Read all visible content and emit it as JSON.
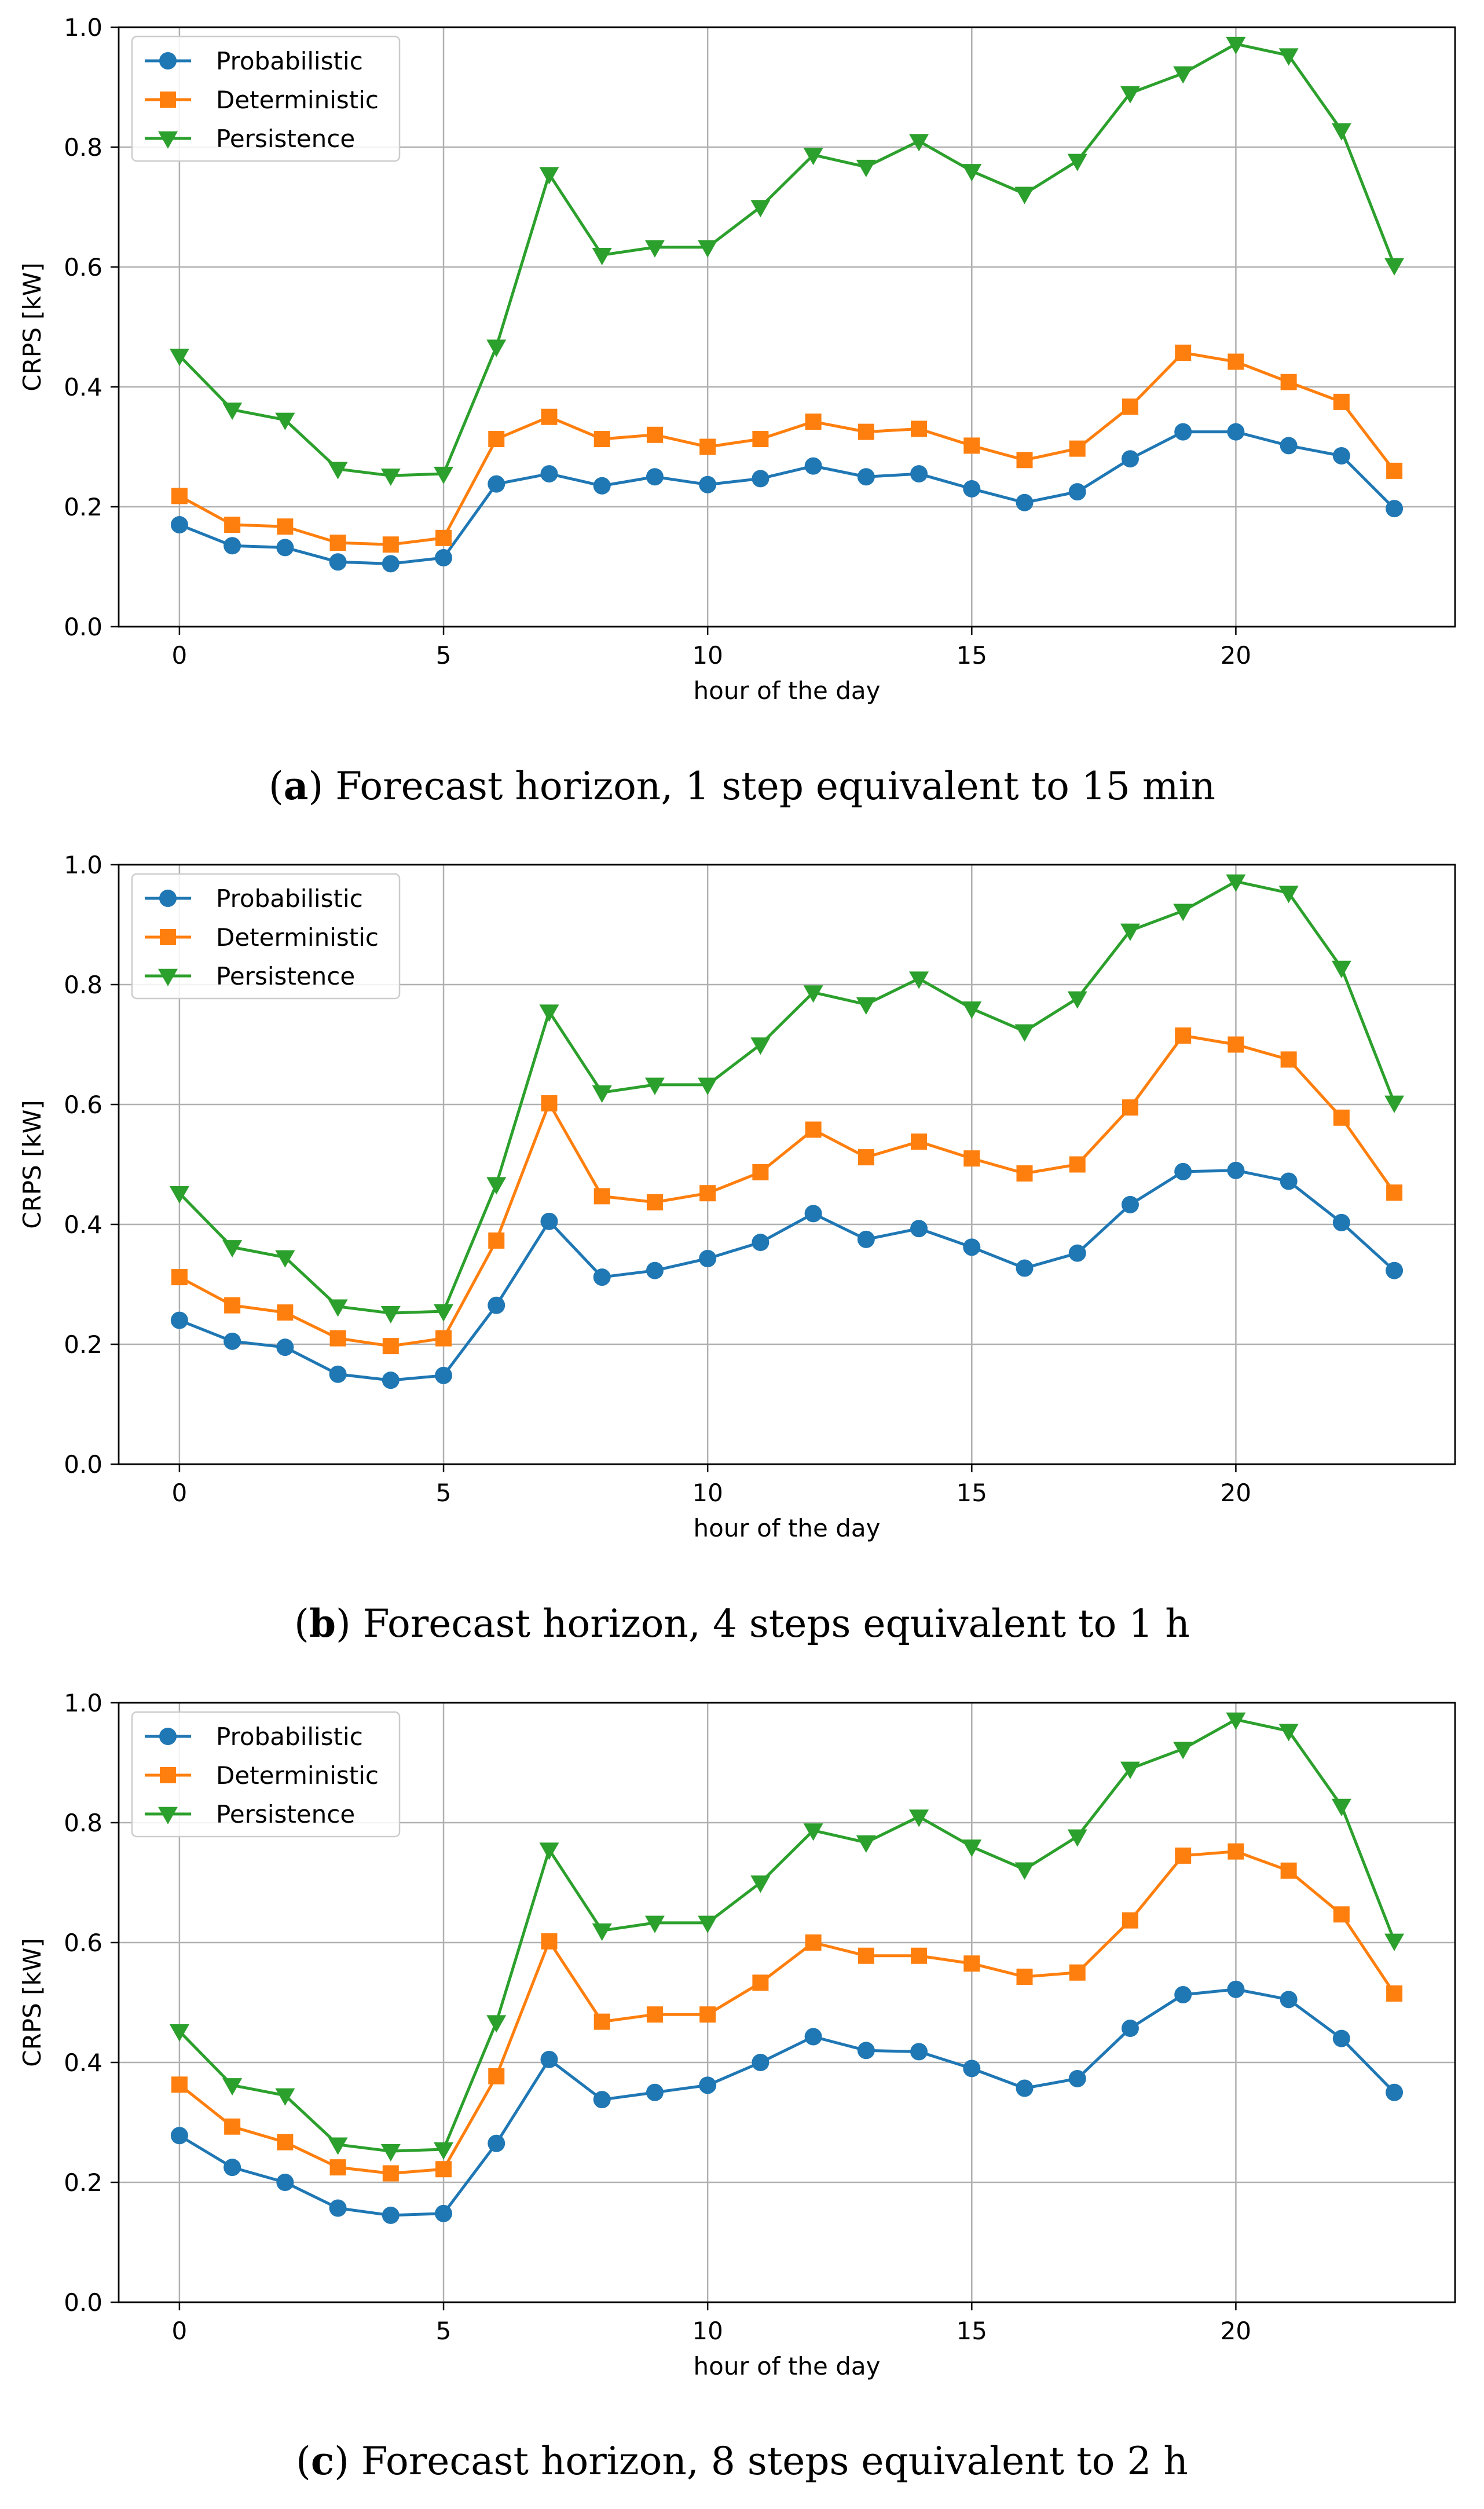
{
  "chart_data": [
    {
      "type": "line",
      "caption": {
        "letter": "a",
        "text": "Forecast horizon, 1 step equivalent to 15 min"
      },
      "xlabel": "hour of the day",
      "ylabel": "CRPS [kW]",
      "xlim": [
        -1.15,
        24.15
      ],
      "ylim": [
        0.0,
        1.0
      ],
      "xticks": [
        0,
        5,
        10,
        15,
        20
      ],
      "yticks": [
        "0.0",
        "0.2",
        "0.4",
        "0.6",
        "0.8",
        "1.0"
      ],
      "legend_position": "top-left",
      "grid": true,
      "x": [
        0,
        1,
        2,
        3,
        4,
        5,
        6,
        7,
        8,
        9,
        10,
        11,
        12,
        13,
        14,
        15,
        16,
        17,
        18,
        19,
        20,
        21,
        22,
        23
      ],
      "series": [
        {
          "name": "Probabilistic",
          "color": "#1f77b4",
          "marker": "circle",
          "values": [
            0.17,
            0.135,
            0.132,
            0.108,
            0.105,
            0.115,
            0.238,
            0.255,
            0.235,
            0.25,
            0.237,
            0.247,
            0.268,
            0.25,
            0.255,
            0.23,
            0.207,
            0.225,
            0.28,
            0.325,
            0.325,
            0.302,
            0.285,
            0.197
          ]
        },
        {
          "name": "Deterministic",
          "color": "#ff7f0e",
          "marker": "square",
          "values": [
            0.218,
            0.17,
            0.167,
            0.14,
            0.137,
            0.148,
            0.313,
            0.35,
            0.313,
            0.32,
            0.3,
            0.313,
            0.342,
            0.325,
            0.33,
            0.302,
            0.278,
            0.297,
            0.367,
            0.457,
            0.442,
            0.408,
            0.375,
            0.26
          ]
        },
        {
          "name": "Persistence",
          "color": "#2ca02c",
          "marker": "triangle-down",
          "values": [
            0.452,
            0.362,
            0.345,
            0.263,
            0.252,
            0.255,
            0.467,
            0.755,
            0.62,
            0.633,
            0.633,
            0.7,
            0.787,
            0.767,
            0.81,
            0.76,
            0.722,
            0.777,
            0.89,
            0.923,
            0.972,
            0.953,
            0.828,
            0.603
          ]
        }
      ]
    },
    {
      "type": "line",
      "caption": {
        "letter": "b",
        "text": "Forecast horizon, 4 steps equivalent to 1 h"
      },
      "xlabel": "hour of the day",
      "ylabel": "CRPS [kW]",
      "xlim": [
        -1.15,
        24.15
      ],
      "ylim": [
        0.0,
        1.0
      ],
      "xticks": [
        0,
        5,
        10,
        15,
        20
      ],
      "yticks": [
        "0.0",
        "0.2",
        "0.4",
        "0.6",
        "0.8",
        "1.0"
      ],
      "legend_position": "top-left",
      "grid": true,
      "x": [
        0,
        1,
        2,
        3,
        4,
        5,
        6,
        7,
        8,
        9,
        10,
        11,
        12,
        13,
        14,
        15,
        16,
        17,
        18,
        19,
        20,
        21,
        22,
        23
      ],
      "series": [
        {
          "name": "Probabilistic",
          "color": "#1f77b4",
          "marker": "circle",
          "values": [
            0.24,
            0.205,
            0.195,
            0.15,
            0.14,
            0.148,
            0.265,
            0.405,
            0.312,
            0.323,
            0.343,
            0.37,
            0.418,
            0.375,
            0.393,
            0.362,
            0.327,
            0.352,
            0.433,
            0.488,
            0.49,
            0.472,
            0.403,
            0.323
          ]
        },
        {
          "name": "Deterministic",
          "color": "#ff7f0e",
          "marker": "square",
          "values": [
            0.312,
            0.265,
            0.253,
            0.21,
            0.197,
            0.21,
            0.373,
            0.602,
            0.447,
            0.437,
            0.452,
            0.487,
            0.558,
            0.512,
            0.538,
            0.51,
            0.485,
            0.5,
            0.595,
            0.715,
            0.7,
            0.675,
            0.578,
            0.453
          ]
        },
        {
          "name": "Persistence",
          "color": "#2ca02c",
          "marker": "triangle-down",
          "values": [
            0.452,
            0.362,
            0.345,
            0.263,
            0.252,
            0.255,
            0.467,
            0.755,
            0.62,
            0.633,
            0.633,
            0.7,
            0.787,
            0.767,
            0.81,
            0.76,
            0.722,
            0.777,
            0.89,
            0.923,
            0.972,
            0.953,
            0.828,
            0.603
          ]
        }
      ]
    },
    {
      "type": "line",
      "caption": {
        "letter": "c",
        "text": "Forecast horizon, 8 steps equivalent to 2 h"
      },
      "xlabel": "hour of the day",
      "ylabel": "CRPS [kW]",
      "xlim": [
        -1.15,
        24.15
      ],
      "ylim": [
        0.0,
        1.0
      ],
      "xticks": [
        0,
        5,
        10,
        15,
        20
      ],
      "yticks": [
        "0.0",
        "0.2",
        "0.4",
        "0.6",
        "0.8",
        "1.0"
      ],
      "legend_position": "top-left",
      "grid": true,
      "x": [
        0,
        1,
        2,
        3,
        4,
        5,
        6,
        7,
        8,
        9,
        10,
        11,
        12,
        13,
        14,
        15,
        16,
        17,
        18,
        19,
        20,
        21,
        22,
        23
      ],
      "series": [
        {
          "name": "Probabilistic",
          "color": "#1f77b4",
          "marker": "circle",
          "values": [
            0.278,
            0.225,
            0.2,
            0.157,
            0.145,
            0.148,
            0.265,
            0.405,
            0.338,
            0.35,
            0.362,
            0.4,
            0.443,
            0.42,
            0.418,
            0.39,
            0.357,
            0.373,
            0.457,
            0.513,
            0.522,
            0.505,
            0.44,
            0.35
          ]
        },
        {
          "name": "Deterministic",
          "color": "#ff7f0e",
          "marker": "square",
          "values": [
            0.363,
            0.293,
            0.267,
            0.225,
            0.215,
            0.222,
            0.377,
            0.602,
            0.468,
            0.48,
            0.48,
            0.533,
            0.6,
            0.578,
            0.578,
            0.565,
            0.543,
            0.55,
            0.637,
            0.745,
            0.752,
            0.72,
            0.647,
            0.515
          ]
        },
        {
          "name": "Persistence",
          "color": "#2ca02c",
          "marker": "triangle-down",
          "values": [
            0.452,
            0.362,
            0.345,
            0.263,
            0.252,
            0.255,
            0.467,
            0.755,
            0.62,
            0.633,
            0.633,
            0.7,
            0.787,
            0.767,
            0.81,
            0.76,
            0.722,
            0.777,
            0.89,
            0.923,
            0.972,
            0.953,
            0.828,
            0.603
          ]
        }
      ]
    }
  ]
}
